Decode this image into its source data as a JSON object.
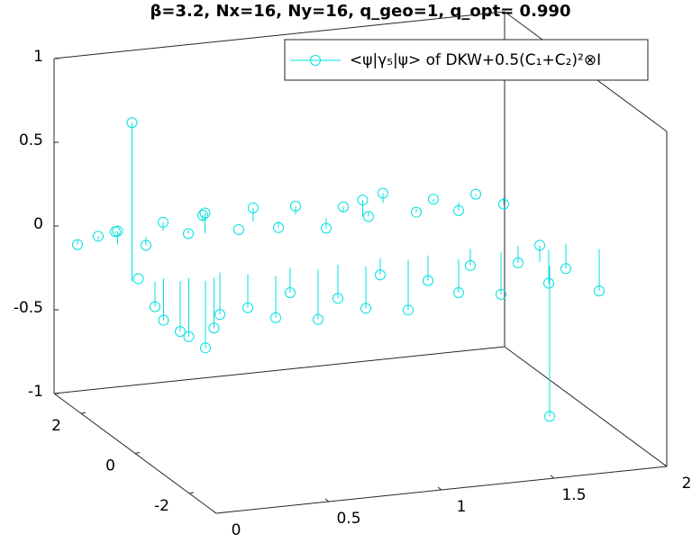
{
  "chart_data": {
    "type": "stem3",
    "title": "β=3.2, Nx=16, Ny=16, q_geo=1, q_opt= 0.990",
    "series": [
      {
        "name": "<ψ|γ₅|ψ> of DKW+0.5(C₁+C₂)²⊗I",
        "color": "#00e0e0",
        "x": [
          0.02,
          0.1,
          0.2,
          0.3,
          0.4,
          0.5,
          0.6,
          0.7,
          0.8,
          0.9,
          1.0,
          1.1,
          1.2,
          1.3,
          1.4,
          1.5,
          1.6,
          1.7,
          1.8,
          1.9,
          0.15,
          0.55,
          1.25,
          0.05,
          0.1,
          0.15,
          0.2,
          0.25,
          0.3,
          0.35,
          0.4,
          0.5,
          0.6,
          0.7,
          0.8,
          0.9,
          1.0,
          1.1,
          1.2,
          1.3,
          1.4,
          1.5,
          1.6,
          1.7,
          1.8,
          1.9,
          2.0,
          0.01,
          1.72,
          1.7
        ],
        "y": [
          2.3,
          2.2,
          2.4,
          2.1,
          2.3,
          2.2,
          2.5,
          2.0,
          2.3,
          2.2,
          2.4,
          2.1,
          2.3,
          2.2,
          2.5,
          2.1,
          2.3,
          2.2,
          2.4,
          2.2,
          1.9,
          2.0,
          2.0,
          0.3,
          0.1,
          0.2,
          0,
          0.1,
          -0.1,
          0,
          0.2,
          0,
          -0.2,
          0.1,
          -0.1,
          0,
          -0.2,
          0.1,
          -0.1,
          0,
          -0.3,
          0.1,
          -0.2,
          0,
          -0.3,
          -0.1,
          -0.5,
          0.2,
          -1,
          -0.8
        ],
        "z": [
          -0.03,
          0.02,
          0.01,
          -0.05,
          0.05,
          -0.02,
          0.04,
          0.0,
          0.08,
          -0.04,
          0.05,
          -0.06,
          0.03,
          -0.03,
          0.06,
          -0.02,
          0.02,
          -0.05,
          0.01,
          -0.04,
          0.08,
          0.12,
          0.1,
          0.0,
          -0.15,
          -0.25,
          -0.3,
          -0.35,
          -0.4,
          -0.3,
          -0.25,
          -0.2,
          -0.25,
          -0.15,
          -0.3,
          -0.2,
          -0.25,
          -0.1,
          -0.3,
          -0.15,
          -0.2,
          -0.1,
          -0.25,
          -0.1,
          -0.2,
          -0.15,
          -0.25,
          0.95,
          -0.9,
          0.1
        ]
      }
    ],
    "xlim": [
      0,
      2
    ],
    "ylim": [
      -3,
      3
    ],
    "zlim": [
      -1,
      1
    ],
    "xticks": [
      0,
      0.5,
      1,
      1.5,
      2
    ],
    "yticks": [
      -2,
      0,
      2
    ],
    "zticks": [
      -1,
      -0.5,
      0,
      0.5,
      1
    ],
    "legend": "upper-right"
  }
}
